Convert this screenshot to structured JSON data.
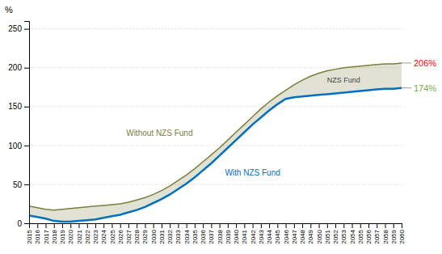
{
  "chart_data": {
    "type": "line",
    "y_label": "%",
    "x": [
      2015,
      2016,
      2017,
      2018,
      2019,
      2020,
      2021,
      2022,
      2023,
      2024,
      2025,
      2026,
      2027,
      2028,
      2029,
      2030,
      2031,
      2032,
      2033,
      2034,
      2035,
      2036,
      2037,
      2038,
      2039,
      2040,
      2041,
      2042,
      2043,
      2044,
      2045,
      2046,
      2047,
      2048,
      2049,
      2050,
      2051,
      2052,
      2053,
      2054,
      2055,
      2056,
      2057,
      2058,
      2059,
      2060
    ],
    "series": [
      {
        "name": "Without NZS Fund",
        "color": "#7d7d3c",
        "values": [
          22,
          20,
          18,
          17,
          18,
          19,
          20,
          21,
          22,
          23,
          24,
          25,
          27,
          30,
          33,
          37,
          42,
          48,
          55,
          62,
          70,
          79,
          88,
          97,
          107,
          117,
          127,
          137,
          147,
          156,
          164,
          171,
          178,
          184,
          189,
          193,
          196,
          198,
          200,
          201,
          202,
          203,
          204,
          205,
          205,
          206
        ]
      },
      {
        "name": "With NZS Fund",
        "color": "#0070c0",
        "values": [
          10,
          8,
          6,
          3,
          2,
          2,
          3,
          4,
          5,
          7,
          9,
          11,
          14,
          17,
          21,
          26,
          31,
          37,
          44,
          51,
          59,
          68,
          77,
          87,
          97,
          107,
          117,
          127,
          136,
          145,
          153,
          160,
          162,
          163,
          164,
          165,
          166,
          167,
          168,
          169,
          170,
          171,
          172,
          173,
          173,
          174
        ]
      }
    ],
    "annotations": [
      {
        "text": "206%",
        "color": "#ff0000"
      },
      {
        "text": "174%",
        "color": "#70ad47"
      },
      {
        "text": "NZS Fund"
      }
    ],
    "xlim": [
      2015,
      2060
    ],
    "xticks": [
      2015,
      2016,
      2017,
      2018,
      2019,
      2020,
      2021,
      2022,
      2023,
      2024,
      2025,
      2026,
      2027,
      2028,
      2029,
      2030,
      2031,
      2032,
      2033,
      2034,
      2035,
      2036,
      2037,
      2038,
      2039,
      2040,
      2041,
      2042,
      2043,
      2044,
      2045,
      2046,
      2047,
      2048,
      2049,
      2050,
      2051,
      2052,
      2053,
      2054,
      2055,
      2056,
      2057,
      2058,
      2059,
      2060
    ],
    "ylim": [
      0,
      260
    ],
    "yticks": [
      0,
      50,
      100,
      150,
      200,
      250
    ],
    "grid": true
  }
}
